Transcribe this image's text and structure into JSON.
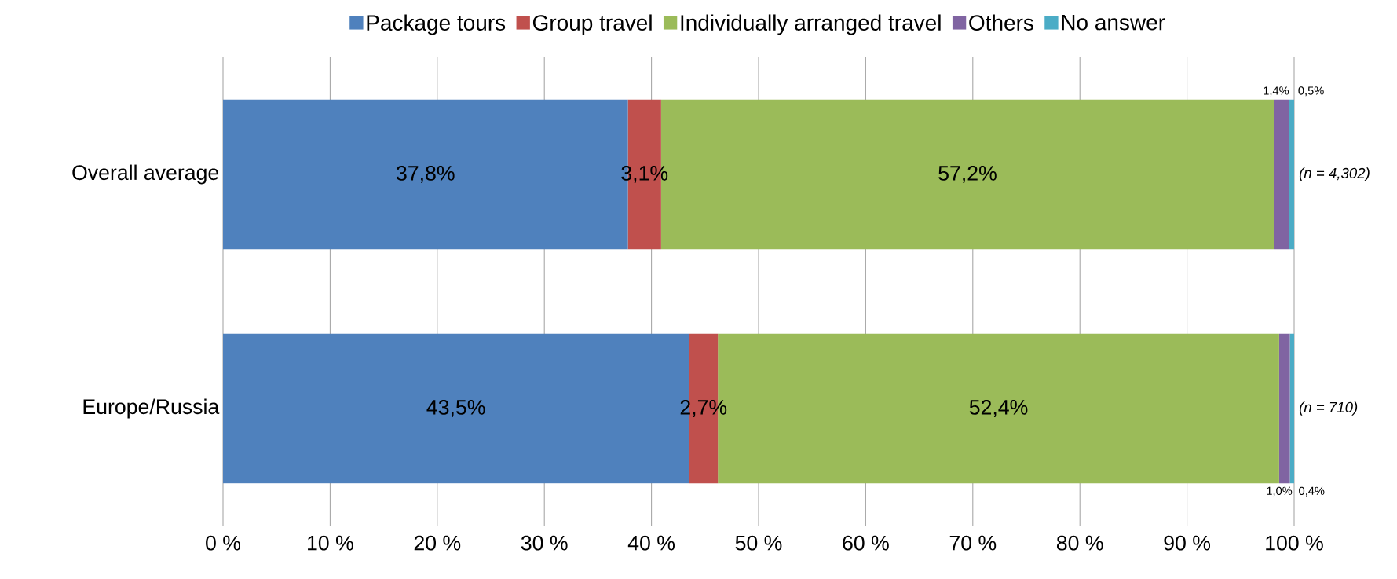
{
  "chart_data": {
    "type": "bar",
    "orientation": "horizontal",
    "stacked": true,
    "categories": [
      "Overall average",
      "Europe/Russia"
    ],
    "series": [
      {
        "name": "Package tours",
        "color": "#4f81bd",
        "values": [
          37.8,
          43.5
        ],
        "value_labels": [
          "37,8%",
          "43,5%"
        ]
      },
      {
        "name": "Group travel",
        "color": "#c0504d",
        "values": [
          3.1,
          2.7
        ],
        "value_labels": [
          "3,1%",
          "2,7%"
        ]
      },
      {
        "name": "Individually arranged travel",
        "color": "#9bbb59",
        "values": [
          57.2,
          52.4
        ],
        "value_labels": [
          "57,2%",
          "52,4%"
        ]
      },
      {
        "name": "Others",
        "color": "#8064a2",
        "values": [
          1.4,
          1.0
        ],
        "value_labels": [
          "1,4%",
          "1,0%"
        ]
      },
      {
        "name": "No answer",
        "color": "#4bacc6",
        "values": [
          0.5,
          0.4
        ],
        "value_labels": [
          "0,5%",
          "0,4%"
        ]
      }
    ],
    "xlim": [
      0,
      100
    ],
    "xticks": [
      {
        "value": 0,
        "label": "0 %"
      },
      {
        "value": 10,
        "label": "10 %"
      },
      {
        "value": 20,
        "label": "20 %"
      },
      {
        "value": 30,
        "label": "30 %"
      },
      {
        "value": 40,
        "label": "40 %"
      },
      {
        "value": 50,
        "label": "50 %"
      },
      {
        "value": 60,
        "label": "60 %"
      },
      {
        "value": 70,
        "label": "70 %"
      },
      {
        "value": 80,
        "label": "80 %"
      },
      {
        "value": 90,
        "label": "90 %"
      },
      {
        "value": 100,
        "label": "100 %"
      }
    ],
    "grid": "x",
    "legend": "top",
    "annotations": [
      "(n = 4,302)",
      "(n = 710)"
    ]
  }
}
